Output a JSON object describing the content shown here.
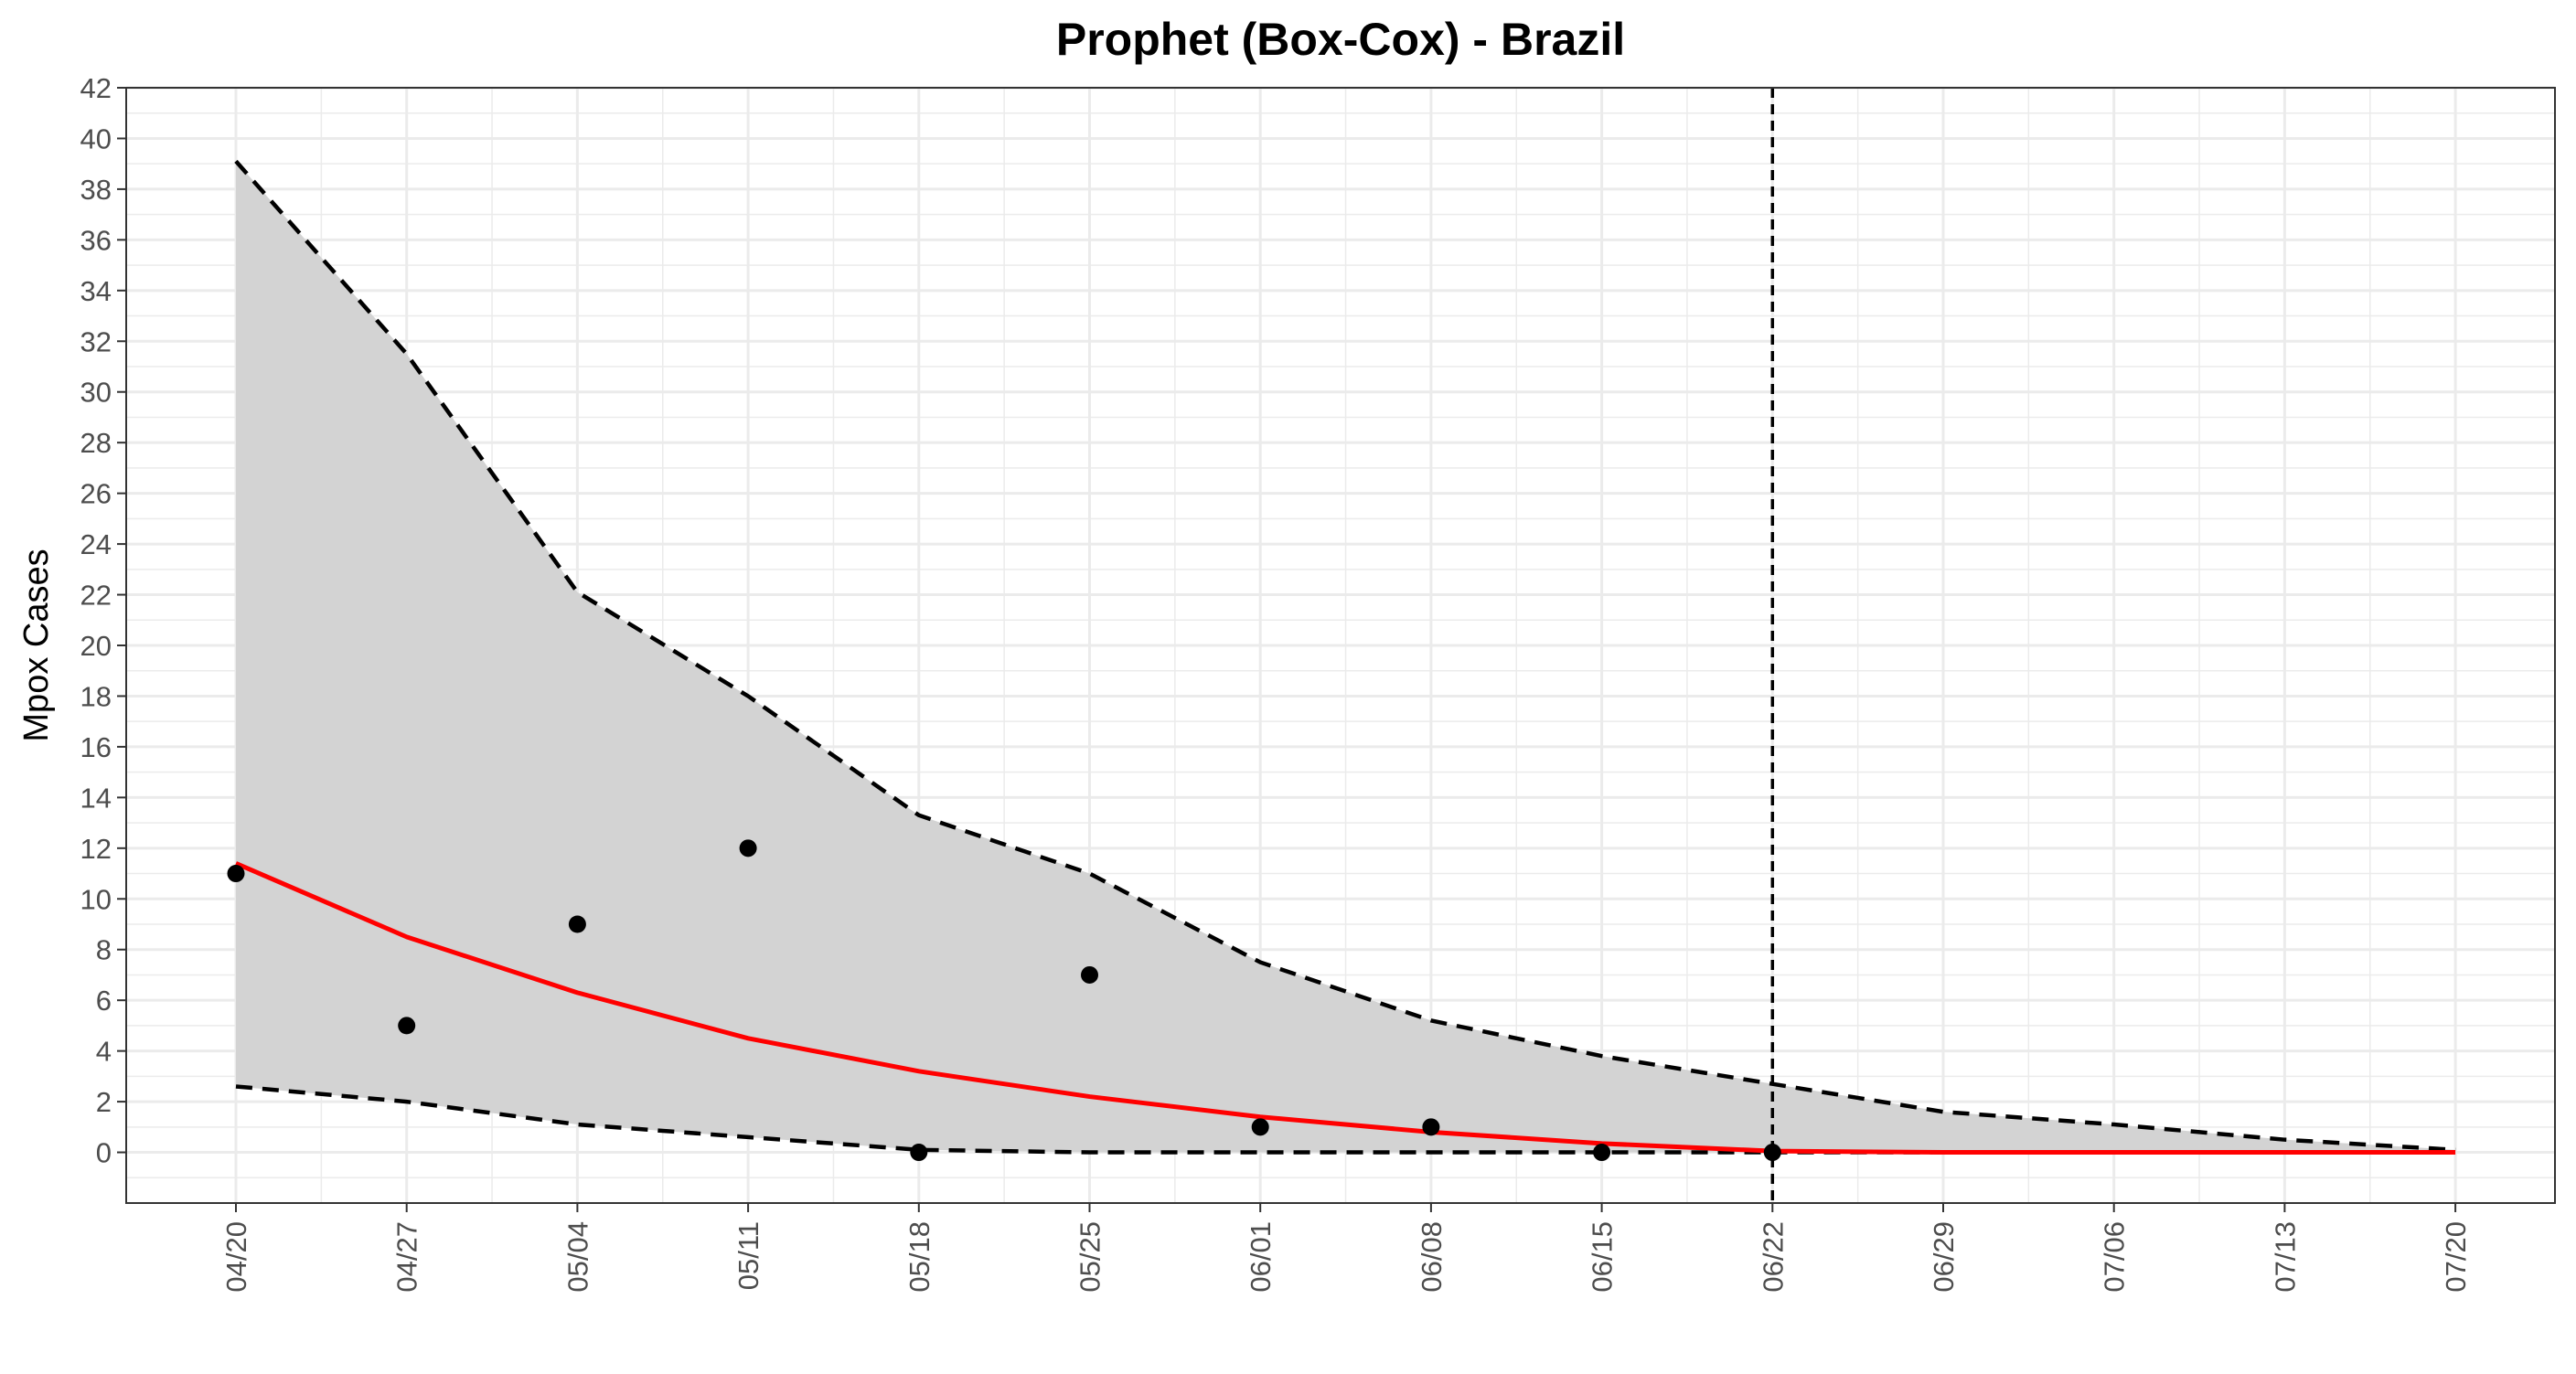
{
  "chart_data": {
    "type": "line",
    "title": "Prophet (Box-Cox) - Brazil",
    "xlabel": "",
    "ylabel": "Mpox Cases",
    "x_ticks": [
      "04/20",
      "04/27",
      "05/04",
      "05/11",
      "05/18",
      "05/25",
      "06/01",
      "06/08",
      "06/15",
      "06/22",
      "06/29",
      "07/06",
      "07/13",
      "07/20"
    ],
    "ylim": [
      -2,
      42
    ],
    "y_ticks": [
      0,
      2,
      4,
      6,
      8,
      10,
      12,
      14,
      16,
      18,
      20,
      22,
      24,
      26,
      28,
      30,
      32,
      34,
      36,
      38,
      40,
      42
    ],
    "grid": true,
    "forecast_start": "06/22",
    "series": [
      {
        "role": "observed",
        "x": [
          "04/20",
          "04/27",
          "05/04",
          "05/11",
          "05/18",
          "05/25",
          "06/01",
          "06/08",
          "06/15",
          "06/22"
        ],
        "values": [
          11,
          5,
          9,
          12,
          0,
          7,
          1,
          1,
          0,
          0
        ],
        "color": "#000000"
      },
      {
        "role": "fitted",
        "x": [
          "04/20",
          "04/27",
          "05/04",
          "05/11",
          "05/18",
          "05/25",
          "06/01",
          "06/08",
          "06/15",
          "06/22",
          "06/29",
          "07/06",
          "07/13",
          "07/20"
        ],
        "values": [
          11.4,
          8.5,
          6.3,
          4.5,
          3.2,
          2.2,
          1.4,
          0.8,
          0.35,
          0.05,
          0,
          0,
          0,
          0
        ],
        "color": "#ff0000"
      },
      {
        "role": "upper",
        "x": [
          "04/20",
          "04/27",
          "05/04",
          "05/11",
          "05/18",
          "05/25",
          "06/01",
          "06/08",
          "06/15",
          "06/22",
          "06/29",
          "07/06",
          "07/13",
          "07/20"
        ],
        "values": [
          39.1,
          31.5,
          22.1,
          18.0,
          13.3,
          11.0,
          7.5,
          5.2,
          3.8,
          2.7,
          1.6,
          1.1,
          0.5,
          0.1
        ],
        "color": "#000000"
      },
      {
        "role": "lower",
        "x": [
          "04/20",
          "04/27",
          "05/04",
          "05/11",
          "05/18",
          "05/25",
          "06/01",
          "06/08",
          "06/15",
          "06/22",
          "06/29",
          "07/06",
          "07/13",
          "07/20"
        ],
        "values": [
          2.6,
          2.0,
          1.1,
          0.6,
          0.1,
          0,
          0,
          0,
          0,
          0,
          0,
          0,
          0,
          0
        ],
        "color": "#000000"
      }
    ],
    "band_color": "#d3d3d3",
    "panel_border_color": "#333333",
    "grid_color": "#ebebeb"
  }
}
